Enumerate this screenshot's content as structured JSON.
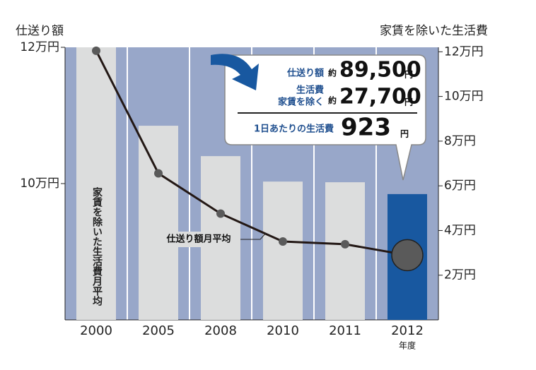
{
  "chart_data": {
    "type": "bar-line",
    "y_label": "仕送り額",
    "y2_label": "家賃を除いた生活費",
    "x_unit": "年度",
    "categories": [
      "2000",
      "2005",
      "2008",
      "2010",
      "2011",
      "2012"
    ],
    "ylim": [
      8,
      12
    ],
    "yticks": [
      {
        "value": 10,
        "label": "10万円"
      },
      {
        "value": 12,
        "label": "12万円"
      }
    ],
    "y2lim": [
      0,
      12.2
    ],
    "y2ticks": [
      {
        "value": 2,
        "label": "2万円"
      },
      {
        "value": 4,
        "label": "4万円"
      },
      {
        "value": 6,
        "label": "6万円"
      },
      {
        "value": 8,
        "label": "8万円"
      },
      {
        "value": 10,
        "label": "10万円"
      },
      {
        "value": 12,
        "label": "12万円"
      }
    ],
    "series": [
      {
        "type": "bar",
        "axis": "y2",
        "colors": [
          "#dcdddd",
          "#dcdddd",
          "#dcdddd",
          "#dcdddd",
          "#dcdddd",
          "#1858a0"
        ],
        "values": [
          12.2,
          8.69,
          7.33,
          6.19,
          6.16,
          5.63
        ]
      },
      {
        "type": "line",
        "axis": "y",
        "color": "#231815",
        "values": [
          11.95,
          10.15,
          9.56,
          9.15,
          9.11,
          8.95
        ]
      }
    ],
    "annotations": {
      "bar_note": "家賃を除いた生活費月平均",
      "line_note": "仕送り額月平均",
      "callout": {
        "l1_label": "仕送り額",
        "l1_approx": "約",
        "l1_value": "89,500",
        "l1_unit": "円",
        "l2_label_a": "生活費",
        "l2_label_b": "家賃を除く",
        "l2_approx": "約",
        "l2_value": "27,700",
        "l2_unit": "円",
        "l3_label": "1日あたりの生活費",
        "l3_value": "923",
        "l3_unit": "円"
      }
    }
  }
}
